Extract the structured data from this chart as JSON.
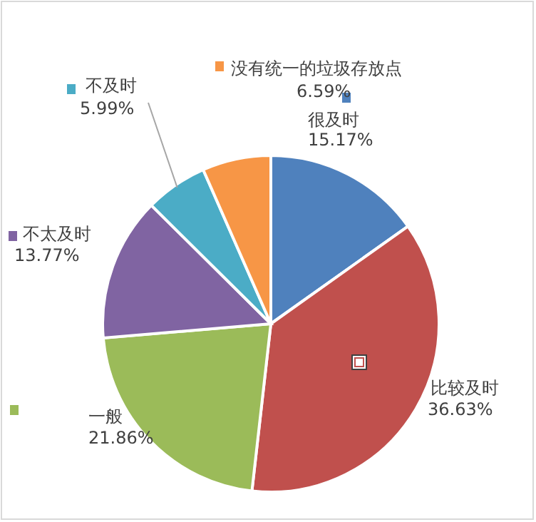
{
  "chart_data": {
    "type": "pie",
    "categories": [
      "很及时",
      "比较及时",
      "一般",
      "不太及时",
      "不及时",
      "没有统一的垃圾存放点"
    ],
    "values": [
      15.17,
      36.63,
      21.86,
      13.77,
      5.99,
      6.59
    ],
    "value_labels": [
      "15.17%",
      "36.63%",
      "21.86%",
      "13.77%",
      "5.99%",
      "6.59%"
    ],
    "colors": [
      "#4f81bd",
      "#c0504d",
      "#9bbb59",
      "#8064a2",
      "#4bacc6",
      "#f79646"
    ],
    "legend": "left"
  }
}
